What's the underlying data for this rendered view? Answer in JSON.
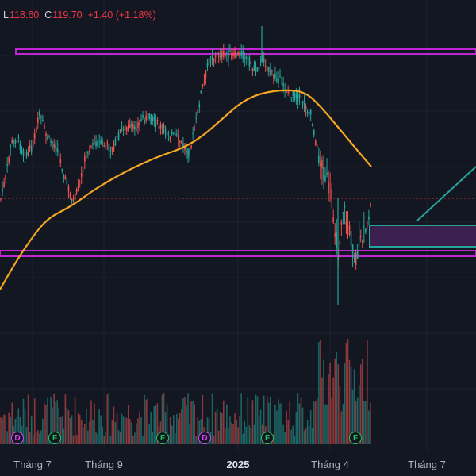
{
  "ohlc": {
    "low_key": "L",
    "low_val": "118.60",
    "close_key": "C",
    "close_val": "119.70",
    "change": "+1.40 (+1.18%)"
  },
  "x_axis": {
    "labels": [
      "Tháng 7",
      "Tháng 9",
      "2025",
      "Tháng 4",
      "Tháng 7"
    ]
  },
  "events": [
    "D",
    "F",
    "F",
    "D",
    "F",
    "F"
  ],
  "colors": {
    "background": "#131722",
    "up": "#26a69a",
    "down": "#ef5350",
    "ma_line": "#f5a623",
    "resistance": "#c026d3",
    "projection": "#26a69a",
    "price_line": "#f23645"
  },
  "chart_data": {
    "type": "candlestick",
    "series": [
      {
        "name": "price",
        "points": 230
      },
      {
        "name": "moving-average"
      },
      {
        "name": "volume"
      }
    ],
    "levels": [
      "upper horizontal zone",
      "lower horizontal zone",
      "current price dotted line"
    ],
    "drawings": [
      "target rectangle",
      "trend projection line"
    ]
  }
}
